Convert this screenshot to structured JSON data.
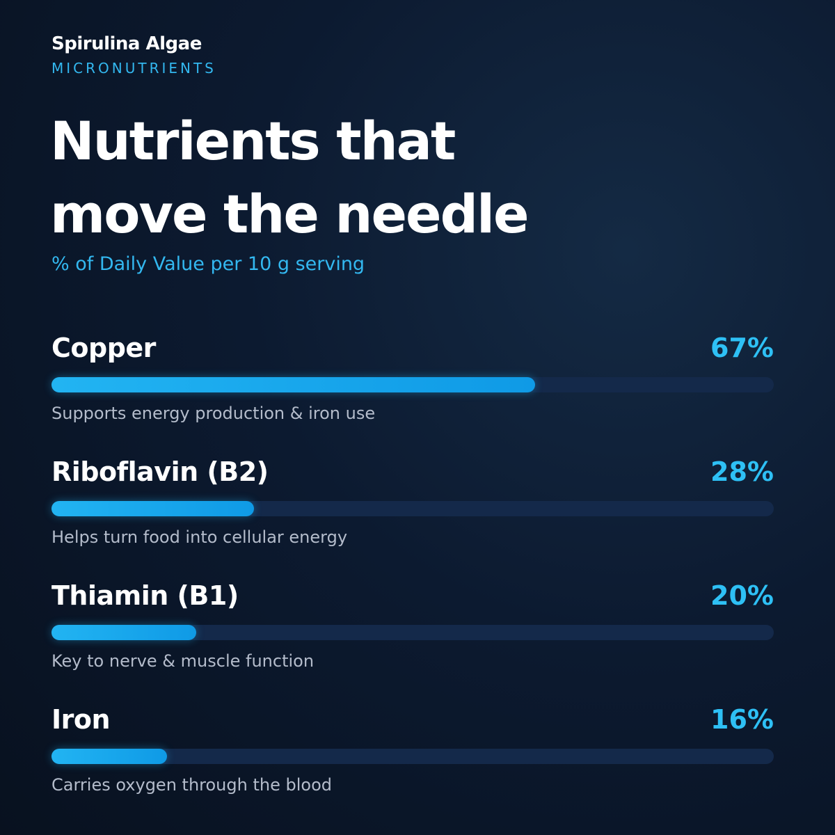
{
  "header": {
    "brand": "Spirulina Algae",
    "eyebrow": "MICRONUTRIENTS"
  },
  "chart_data": {
    "type": "bar",
    "orientation": "horizontal",
    "title": "Nutrients that move the needle",
    "subtitle": "% of Daily Value per 10 g serving",
    "categories": [
      "Copper",
      "Riboflavin (B2)",
      "Thiamin (B1)",
      "Iron"
    ],
    "values": [
      67,
      28,
      20,
      16
    ],
    "value_labels": [
      "67%",
      "28%",
      "20%",
      "16%"
    ],
    "descriptions": [
      "Supports energy production & iron use",
      "Helps turn food into cellular energy",
      "Key to nerve & muscle function",
      "Carries oxygen through the blood"
    ],
    "xlim": [
      0,
      100
    ],
    "color": "#22b4f2"
  }
}
